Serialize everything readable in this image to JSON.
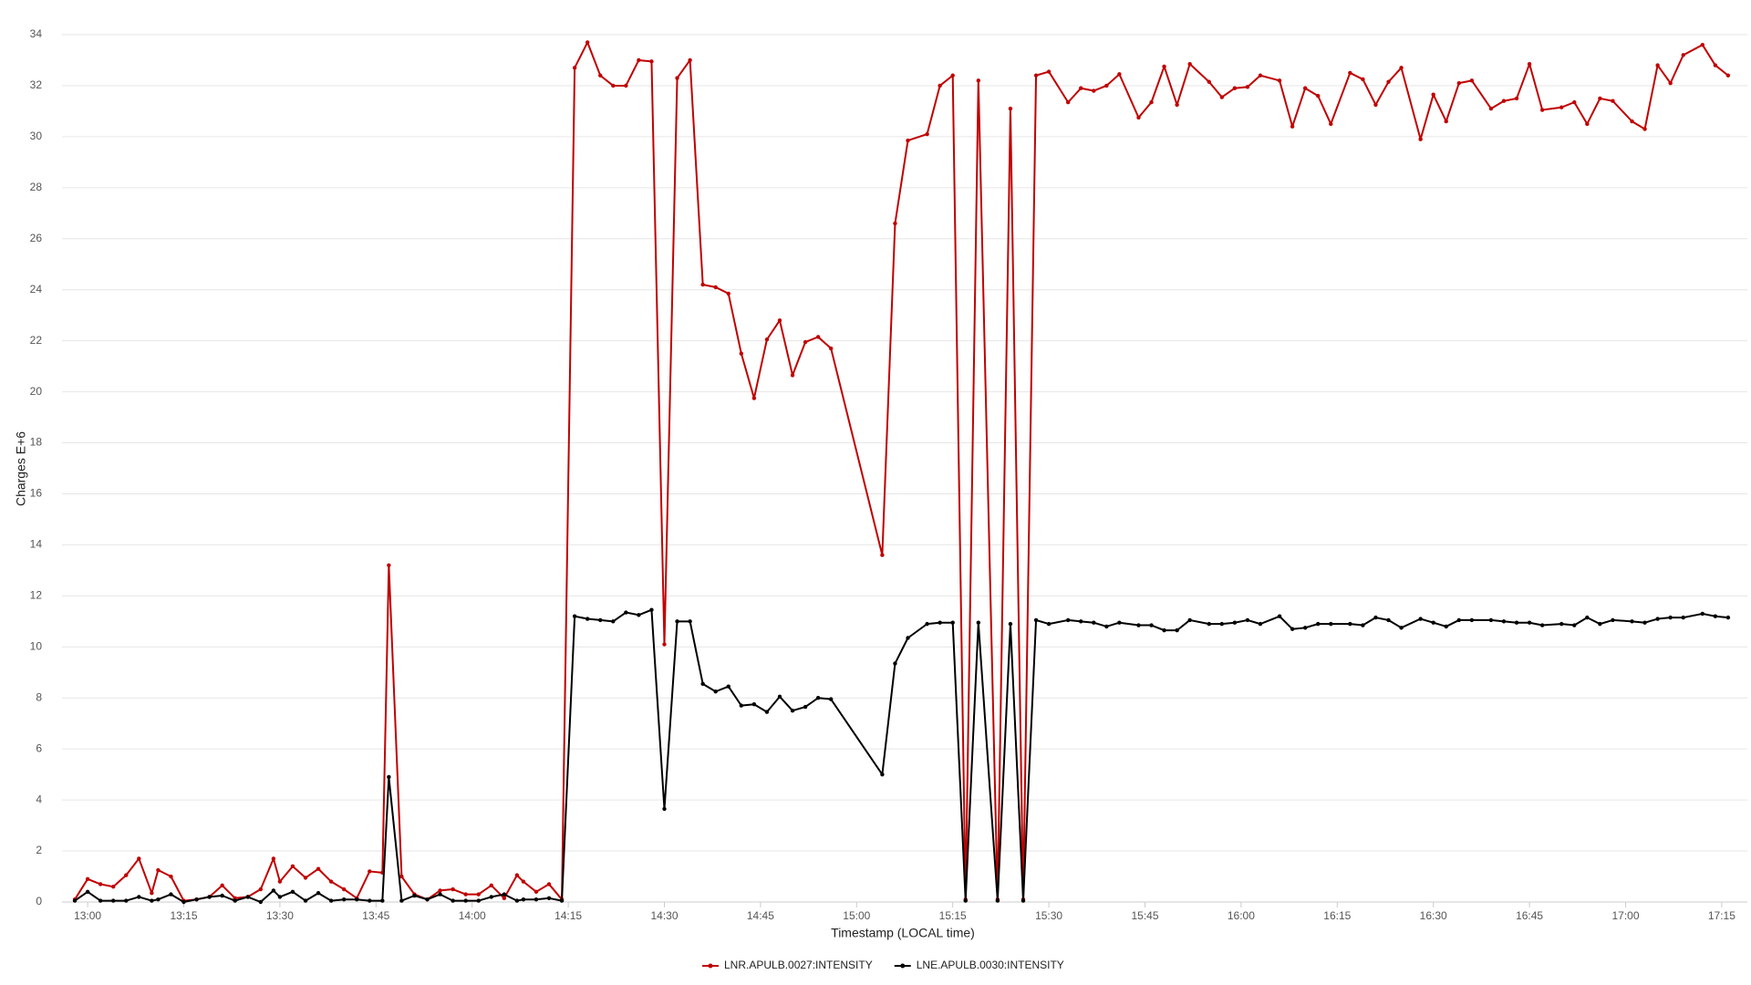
{
  "chart_data": {
    "type": "line",
    "y_label": "Charges E+6",
    "x_label": "Timestamp (LOCAL time)",
    "x": [
      "12:58",
      "13:00",
      "13:02",
      "13:04",
      "13:06",
      "13:08",
      "13:10",
      "13:11",
      "13:13",
      "13:15",
      "13:17",
      "13:19",
      "13:21",
      "13:23",
      "13:25",
      "13:27",
      "13:29",
      "13:30",
      "13:32",
      "13:34",
      "13:36",
      "13:38",
      "13:40",
      "13:42",
      "13:44",
      "13:46",
      "13:47",
      "13:49",
      "13:51",
      "13:53",
      "13:55",
      "13:57",
      "13:59",
      "14:01",
      "14:03",
      "14:05",
      "14:07",
      "14:08",
      "14:10",
      "14:12",
      "14:14",
      "14:16",
      "14:18",
      "14:20",
      "14:22",
      "14:24",
      "14:26",
      "14:28",
      "14:30",
      "14:32",
      "14:34",
      "14:36",
      "14:38",
      "14:40",
      "14:42",
      "14:44",
      "14:46",
      "14:48",
      "14:50",
      "14:52",
      "14:54",
      "14:56",
      "15:04",
      "15:06",
      "15:08",
      "15:11",
      "15:13",
      "15:15",
      "15:17",
      "15:19",
      "15:22",
      "15:24",
      "15:26",
      "15:28",
      "15:30",
      "15:33",
      "15:35",
      "15:37",
      "15:39",
      "15:41",
      "15:44",
      "15:46",
      "15:48",
      "15:50",
      "15:52",
      "15:55",
      "15:57",
      "15:59",
      "16:01",
      "16:03",
      "16:06",
      "16:08",
      "16:10",
      "16:12",
      "16:14",
      "16:17",
      "16:19",
      "16:21",
      "16:23",
      "16:25",
      "16:28",
      "16:30",
      "16:32",
      "16:34",
      "16:36",
      "16:39",
      "16:41",
      "16:43",
      "16:45",
      "16:47",
      "16:50",
      "16:52",
      "16:54",
      "16:56",
      "16:58",
      "17:01",
      "17:03",
      "17:05",
      "17:07",
      "17:09",
      "17:12",
      "17:14",
      "17:16"
    ],
    "series": [
      {
        "name": "LNR.APULB.0027:INTENSITY",
        "color": "#c00000",
        "values": [
          0.1,
          0.9,
          0.7,
          0.6,
          1.05,
          1.7,
          0.35,
          1.25,
          1.0,
          0.05,
          0.1,
          0.2,
          0.65,
          0.15,
          0.2,
          0.5,
          1.7,
          0.8,
          1.4,
          0.95,
          1.3,
          0.8,
          0.5,
          0.15,
          1.2,
          1.15,
          13.2,
          1.0,
          0.3,
          0.1,
          0.45,
          0.5,
          0.3,
          0.3,
          0.65,
          0.15,
          1.05,
          0.8,
          0.4,
          0.7,
          0.1,
          32.7,
          33.7,
          32.4,
          32.0,
          32.0,
          33.0,
          32.95,
          10.1,
          32.3,
          33.0,
          24.2,
          24.1,
          23.85,
          21.5,
          19.75,
          22.05,
          22.8,
          20.65,
          21.95,
          22.15,
          21.7,
          13.6,
          26.6,
          29.85,
          30.1,
          32.0,
          32.4,
          0.1,
          32.2,
          0.1,
          31.1,
          0.1,
          32.4,
          32.55,
          31.35,
          31.9,
          31.8,
          32.0,
          32.45,
          30.75,
          31.35,
          32.75,
          31.25,
          32.85,
          32.15,
          31.55,
          31.9,
          31.95,
          32.4,
          32.2,
          30.4,
          31.9,
          31.6,
          30.5,
          32.5,
          32.25,
          31.25,
          32.15,
          32.7,
          29.9,
          31.65,
          30.6,
          32.1,
          32.2,
          31.1,
          31.4,
          31.5,
          32.85,
          31.05,
          31.15,
          31.35,
          30.5,
          31.5,
          31.4,
          30.6,
          30.3,
          32.8,
          32.1,
          33.2,
          33.6,
          32.8,
          32.4
        ]
      },
      {
        "name": "LNE.APULB.0030:INTENSITY",
        "color": "#000000",
        "values": [
          0.05,
          0.4,
          0.05,
          0.05,
          0.05,
          0.2,
          0.05,
          0.1,
          0.3,
          0.0,
          0.1,
          0.2,
          0.25,
          0.05,
          0.2,
          0.0,
          0.45,
          0.2,
          0.4,
          0.05,
          0.35,
          0.05,
          0.1,
          0.1,
          0.05,
          0.05,
          4.9,
          0.05,
          0.25,
          0.1,
          0.3,
          0.05,
          0.05,
          0.05,
          0.2,
          0.3,
          0.05,
          0.1,
          0.1,
          0.15,
          0.05,
          11.2,
          11.1,
          11.05,
          11.0,
          11.35,
          11.25,
          11.45,
          3.65,
          11.0,
          11.0,
          8.55,
          8.25,
          8.45,
          7.7,
          7.75,
          7.45,
          8.05,
          7.5,
          7.65,
          8.0,
          7.95,
          5.0,
          9.35,
          10.35,
          10.9,
          10.95,
          10.95,
          0.05,
          10.95,
          0.05,
          10.9,
          0.05,
          11.05,
          10.9,
          11.05,
          11.0,
          10.95,
          10.8,
          10.95,
          10.85,
          10.85,
          10.65,
          10.65,
          11.05,
          10.9,
          10.9,
          10.95,
          11.05,
          10.9,
          11.2,
          10.7,
          10.75,
          10.9,
          10.9,
          10.9,
          10.85,
          11.15,
          11.05,
          10.75,
          11.1,
          10.95,
          10.8,
          11.05,
          11.05,
          11.05,
          11.0,
          10.95,
          10.95,
          10.85,
          10.9,
          10.85,
          11.15,
          10.9,
          11.05,
          11.0,
          10.95,
          11.1,
          11.15,
          11.15,
          11.3,
          11.2,
          11.15
        ]
      }
    ],
    "xlim": [
      "12:56",
      "17:19"
    ],
    "xticks": [
      "13:00",
      "13:15",
      "13:30",
      "13:45",
      "14:00",
      "14:15",
      "14:30",
      "14:45",
      "15:00",
      "15:15",
      "15:30",
      "15:45",
      "16:00",
      "16:15",
      "16:30",
      "16:45",
      "17:00",
      "17:15"
    ],
    "ylim": [
      0,
      34
    ],
    "yticks": [
      0,
      2,
      4,
      6,
      8,
      10,
      12,
      14,
      16,
      18,
      20,
      22,
      24,
      26,
      28,
      30,
      32,
      34
    ],
    "grid": true,
    "legend": "bottom"
  }
}
